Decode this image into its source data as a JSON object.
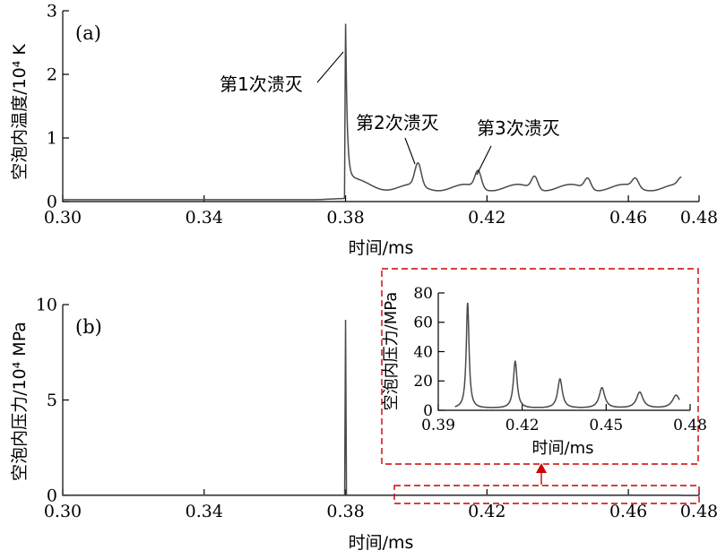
{
  "chart_data": [
    {
      "type": "line",
      "panel_label": "(a)",
      "xlabel": "时间/ms",
      "ylabel": "空泡内温度/10⁴ K",
      "xlim": [
        0.3,
        0.48
      ],
      "ylim": [
        0,
        3
      ],
      "xticks": [
        "0.30",
        "0.34",
        "0.38",
        "0.42",
        "0.46",
        "0.48"
      ],
      "xtick_values": [
        0.3,
        0.34,
        0.38,
        0.42,
        0.46,
        0.48
      ],
      "yticks": [
        "0",
        "1",
        "2",
        "3"
      ],
      "ytick_values": [
        0,
        1,
        2,
        3
      ],
      "peaks": [
        {
          "x": 0.38,
          "y": 2.85
        },
        {
          "x": 0.4005,
          "y": 0.55
        },
        {
          "x": 0.4175,
          "y": 0.47
        },
        {
          "x": 0.4335,
          "y": 0.4
        },
        {
          "x": 0.4485,
          "y": 0.37
        },
        {
          "x": 0.462,
          "y": 0.34
        },
        {
          "x": 0.475,
          "y": 0.32
        }
      ],
      "baseline_before_first_collapse": 0.03,
      "annotations": [
        {
          "text": "第1次溃灭",
          "target_x": 0.38,
          "target_y": 2.42
        },
        {
          "text": "第2次溃灭",
          "target_x": 0.4005,
          "target_y": 0.55
        },
        {
          "text": "第3次溃灭",
          "target_x": 0.4175,
          "target_y": 0.47
        }
      ]
    },
    {
      "type": "line",
      "panel_label": "(b)",
      "xlabel": "时间/ms",
      "ylabel": "空泡内压力/10⁴ MPa",
      "xlim": [
        0.3,
        0.48
      ],
      "ylim": [
        0,
        10
      ],
      "xticks": [
        "0.30",
        "0.34",
        "0.38",
        "0.42",
        "0.46",
        "0.48"
      ],
      "xtick_values": [
        0.3,
        0.34,
        0.38,
        0.42,
        0.46,
        0.48
      ],
      "yticks": [
        "0",
        "5",
        "10"
      ],
      "ytick_values": [
        0,
        5,
        10
      ],
      "peaks": [
        {
          "x": 0.38,
          "y": 9.2
        }
      ]
    },
    {
      "type": "line",
      "panel_label": "",
      "xlabel": "时间/ms",
      "ylabel": "空泡内压力/MPa",
      "xlim": [
        0.39,
        0.48
      ],
      "ylim": [
        0,
        80
      ],
      "xticks": [
        "0.39",
        "0.42",
        "0.45",
        "0.48"
      ],
      "xtick_values": [
        0.39,
        0.42,
        0.45,
        0.48
      ],
      "yticks": [
        "0",
        "20",
        "40",
        "60",
        "80"
      ],
      "ytick_values": [
        0,
        20,
        40,
        60,
        80
      ],
      "peaks": [
        {
          "x": 0.4005,
          "y": 72
        },
        {
          "x": 0.4175,
          "y": 32
        },
        {
          "x": 0.4335,
          "y": 20
        },
        {
          "x": 0.4485,
          "y": 14
        },
        {
          "x": 0.462,
          "y": 11
        },
        {
          "x": 0.475,
          "y": 9
        }
      ]
    }
  ],
  "colors": {
    "curve": "#4a4a4a",
    "axis": "#000000",
    "highlight": "#cc0000"
  }
}
